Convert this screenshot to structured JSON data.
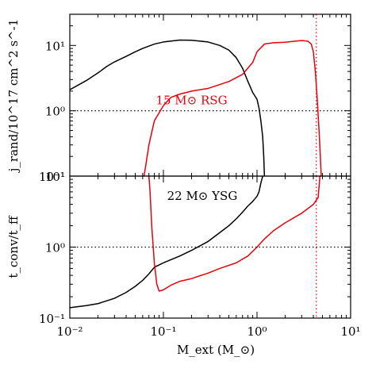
{
  "figure": {
    "xlabel": "M_ext (M_⊙)",
    "xlim": [
      0.01,
      10
    ],
    "xscale": "log",
    "colors": {
      "red": "#e8000b",
      "black": "#000000",
      "ref_line": "#000000"
    }
  },
  "chart_data": [
    {
      "type": "line",
      "panel": "top",
      "ylabel": "j_rand/10^17 cm^2 s^-1",
      "yscale": "log",
      "ylim": [
        0.1,
        30
      ],
      "yticks": [
        {
          "value": 10,
          "label": "10¹"
        },
        {
          "value": 1,
          "label": "10⁰"
        },
        {
          "value": 0.1,
          "label": "10⁻¹"
        }
      ],
      "xticks": [
        {
          "value": 0.01,
          "label": "10⁻²"
        },
        {
          "value": 0.1,
          "label": "10⁻¹"
        },
        {
          "value": 1,
          "label": "10⁰"
        },
        {
          "value": 10,
          "label": "10¹"
        }
      ],
      "hline": 1.0,
      "vline": 4.3,
      "annotation": {
        "text": "15 M⊙ RSG",
        "x": 0.2,
        "y": 1.25,
        "color": "#e8000b"
      },
      "series": [
        {
          "color": "#000000",
          "x": [
            0.01,
            0.015,
            0.02,
            0.025,
            0.03,
            0.04,
            0.05,
            0.06,
            0.08,
            0.1,
            0.15,
            0.2,
            0.3,
            0.4,
            0.5,
            0.6,
            0.7,
            0.8,
            0.9,
            1.0,
            1.05,
            1.1,
            1.15,
            1.18,
            1.2
          ],
          "y": [
            2.1,
            2.9,
            3.8,
            4.8,
            5.6,
            6.8,
            8.0,
            9.0,
            10.5,
            11.3,
            12.1,
            12.0,
            11.3,
            10.0,
            8.5,
            6.5,
            4.5,
            2.8,
            1.9,
            1.5,
            1.1,
            0.7,
            0.4,
            0.2,
            0.1
          ]
        },
        {
          "color": "#e8000b",
          "x": [
            0.062,
            0.065,
            0.07,
            0.08,
            0.1,
            0.12,
            0.15,
            0.2,
            0.3,
            0.5,
            0.7,
            0.9,
            1.0,
            1.2,
            1.5,
            2.0,
            2.5,
            3.0,
            3.5,
            3.8,
            4.0,
            4.2,
            4.4,
            4.6,
            4.75,
            4.85
          ],
          "y": [
            0.1,
            0.15,
            0.3,
            0.7,
            1.2,
            1.6,
            1.8,
            2.0,
            2.2,
            2.8,
            3.6,
            5.5,
            8.0,
            10.5,
            11.0,
            11.2,
            11.6,
            11.9,
            11.6,
            10.5,
            8.0,
            4.0,
            1.5,
            0.5,
            0.2,
            0.1
          ]
        }
      ]
    },
    {
      "type": "line",
      "panel": "bottom",
      "ylabel": "t_conv/t_ff",
      "yscale": "log",
      "ylim": [
        0.1,
        10
      ],
      "yticks": [
        {
          "value": 10,
          "label": "10¹"
        },
        {
          "value": 1,
          "label": "10⁰"
        },
        {
          "value": 0.1,
          "label": "10⁻¹"
        }
      ],
      "xticks": [
        {
          "value": 0.01,
          "label": "10⁻²"
        },
        {
          "value": 0.1,
          "label": "10⁻¹"
        },
        {
          "value": 1,
          "label": "10⁰"
        },
        {
          "value": 10,
          "label": "10¹"
        }
      ],
      "hline": 1.0,
      "vline": 4.3,
      "annotation": {
        "text": "22 M⊙ YSG",
        "x": 0.26,
        "y": 4.6,
        "color": "#000000"
      },
      "series": [
        {
          "color": "#000000",
          "x": [
            0.01,
            0.015,
            0.02,
            0.03,
            0.04,
            0.05,
            0.06,
            0.07,
            0.08,
            0.1,
            0.15,
            0.2,
            0.3,
            0.4,
            0.5,
            0.6,
            0.7,
            0.8,
            0.9,
            1.0,
            1.05,
            1.1,
            1.15
          ],
          "y": [
            0.14,
            0.15,
            0.16,
            0.19,
            0.23,
            0.28,
            0.34,
            0.42,
            0.52,
            0.6,
            0.75,
            0.9,
            1.2,
            1.6,
            2.0,
            2.5,
            3.1,
            3.8,
            4.4,
            5.2,
            6.0,
            8.0,
            10.0
          ]
        },
        {
          "color": "#e8000b",
          "x": [
            0.07,
            0.072,
            0.075,
            0.08,
            0.085,
            0.09,
            0.1,
            0.12,
            0.15,
            0.2,
            0.3,
            0.4,
            0.6,
            0.8,
            1.0,
            1.2,
            1.5,
            2.0,
            3.0,
            4.0,
            4.5,
            4.7
          ],
          "y": [
            10.0,
            6.0,
            2.0,
            0.6,
            0.3,
            0.24,
            0.25,
            0.29,
            0.33,
            0.36,
            0.43,
            0.5,
            0.6,
            0.75,
            1.0,
            1.3,
            1.7,
            2.2,
            3.0,
            4.0,
            5.0,
            10.0
          ]
        }
      ]
    }
  ]
}
